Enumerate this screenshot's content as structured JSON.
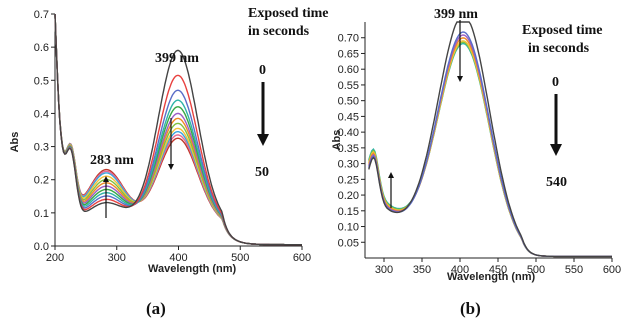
{
  "colors": {
    "series": [
      "#444444",
      "#e8413f",
      "#5a6ec8",
      "#2fb3a8",
      "#39a845",
      "#9b5fc4",
      "#f08a24",
      "#7fc241",
      "#f2c23a",
      "#3aa6dd",
      "#e36b96",
      "#c0392b"
    ]
  },
  "chart_data": [
    {
      "type": "line",
      "panel_label": "(a)",
      "xlabel": "Wavelength (nm)",
      "ylabel": "Abs",
      "xlim": [
        200,
        600
      ],
      "ylim": [
        0,
        0.7
      ],
      "xticks": [
        "200",
        "300",
        "400",
        "500",
        "600"
      ],
      "yticks": [
        "0.0",
        "0.1",
        "0.2",
        "0.3",
        "0.4",
        "0.5",
        "0.6",
        "0.7"
      ],
      "annotations": {
        "peak_label": "399 nm",
        "iso_label": "283 nm",
        "legend_title_1": "Exposed time",
        "legend_title_2": "in seconds",
        "time_start": "0",
        "time_end": "50"
      },
      "series_peak_abs": [
        0.53,
        0.455,
        0.41,
        0.38,
        0.36,
        0.34,
        0.325,
        0.31,
        0.295,
        0.285,
        0.275,
        0.265
      ],
      "series_283nm_abs": [
        0.12,
        0.13,
        0.14,
        0.15,
        0.16,
        0.17,
        0.18,
        0.19,
        0.2,
        0.21,
        0.215,
        0.22
      ]
    },
    {
      "type": "line",
      "panel_label": "(b)",
      "xlabel": "Wavelength (nm)",
      "ylabel": "Abs",
      "xlim": [
        275,
        600
      ],
      "ylim": [
        0,
        0.75
      ],
      "xticks": [
        "300",
        "350",
        "400",
        "450",
        "500",
        "550",
        "600"
      ],
      "yticks": [
        "0.05",
        "0.10",
        "0.15",
        "0.20",
        "0.25",
        "0.30",
        "0.35",
        "0.40",
        "0.45",
        "0.50",
        "0.55",
        "0.60",
        "0.65",
        "0.70"
      ],
      "annotations": {
        "peak_label": "399 nm",
        "legend_title_1": "Exposed time",
        "legend_title_2": "in seconds",
        "time_start": "0",
        "time_end": "540"
      },
      "series_peak_abs": [
        0.745,
        0.69,
        0.68,
        0.67,
        0.66,
        0.655,
        0.65
      ],
      "series_300nm_abs": [
        0.22,
        0.225,
        0.23,
        0.235,
        0.24,
        0.245,
        0.25
      ]
    }
  ]
}
